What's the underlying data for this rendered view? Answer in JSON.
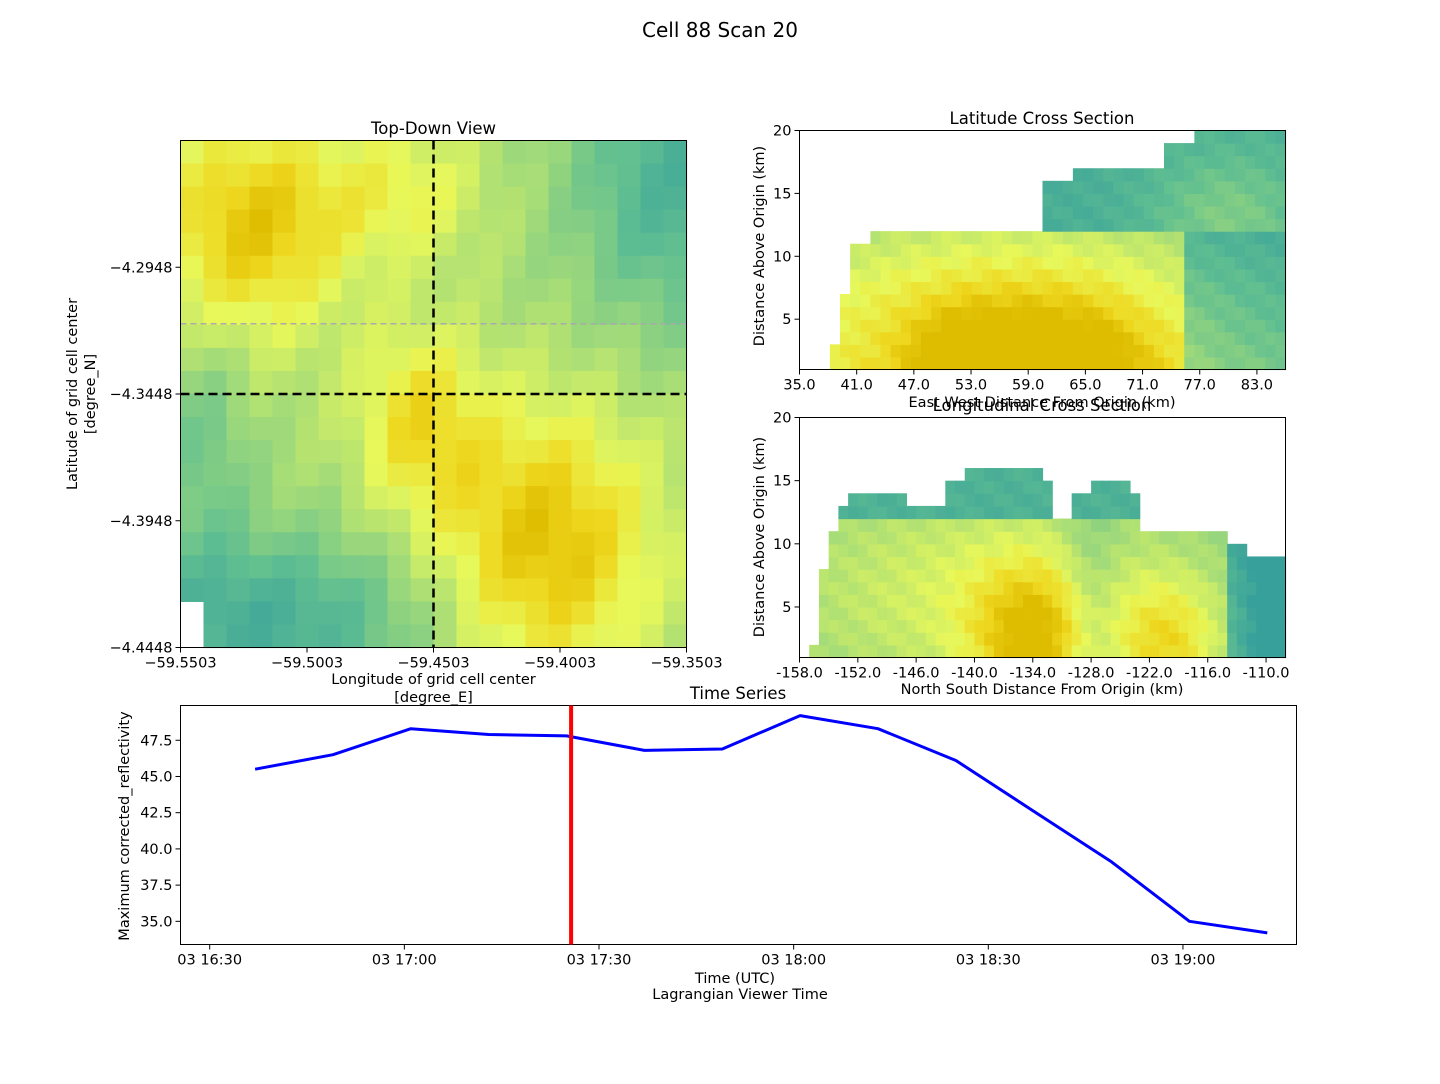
{
  "figure": {
    "title": "Cell 88 Scan 20"
  },
  "chart_data": [
    {
      "id": "topdown",
      "type": "heatmap",
      "title": "Top-Down View",
      "xlabel_line1": "Longitude of grid cell center",
      "xlabel_line2": "[degree_E]",
      "ylabel_line1": "Latitude of grid cell center",
      "ylabel_line2": "[degree_N]",
      "xlim": [
        -59.5503,
        -59.3503
      ],
      "ylim": [
        -4.4448,
        -4.2448
      ],
      "xticks": [
        -59.5503,
        -59.5003,
        -59.4503,
        -59.4003,
        -59.3503
      ],
      "xtick_labels": [
        "−59.5503",
        "−59.5003",
        "−59.4503",
        "−59.4003",
        "−59.3503"
      ],
      "yticks": [
        -4.2948,
        -4.3448,
        -4.3948,
        -4.4448
      ],
      "ytick_labels": [
        "−4.2948",
        "−4.3448",
        "−4.3948",
        "−4.4448"
      ],
      "crosshair": {
        "lon": -59.4503,
        "lat": -4.3448
      },
      "reference_lat": -4.3171,
      "grid_shape": [
        22,
        22
      ]
    },
    {
      "id": "latcross",
      "type": "heatmap",
      "title": "Latitude Cross Section",
      "xlabel": "East West Distance From Origin (km)",
      "ylabel": "Distance Above Origin (km)",
      "xlim": [
        35.0,
        86.0
      ],
      "ylim": [
        1.0,
        20.0
      ],
      "xticks": [
        35.0,
        41.0,
        47.0,
        53.0,
        59.0,
        65.0,
        71.0,
        77.0,
        83.0
      ],
      "xtick_labels": [
        "35.0",
        "41.0",
        "47.0",
        "53.0",
        "59.0",
        "65.0",
        "71.0",
        "77.0",
        "83.0"
      ],
      "yticks": [
        5,
        10,
        15,
        20
      ],
      "ytick_labels": [
        "5",
        "10",
        "15",
        "20"
      ]
    },
    {
      "id": "loncross",
      "type": "heatmap",
      "title": "Longitudinal Cross Section",
      "xlabel": "North South Distance From Origin (km)",
      "ylabel": "Distance Above Origin (km)",
      "xlim": [
        -158.0,
        -108.0
      ],
      "ylim": [
        1.0,
        20.0
      ],
      "xticks": [
        -158.0,
        -152.0,
        -146.0,
        -140.0,
        -134.0,
        -128.0,
        -122.0,
        -116.0,
        -110.0
      ],
      "xtick_labels": [
        "-158.0",
        "-152.0",
        "-146.0",
        "-140.0",
        "-134.0",
        "-128.0",
        "-122.0",
        "-116.0",
        "-110.0"
      ],
      "yticks": [
        5,
        10,
        15,
        20
      ],
      "ytick_labels": [
        "5",
        "10",
        "15",
        "20"
      ]
    },
    {
      "id": "timeseries",
      "type": "line",
      "title": "Time Series",
      "xlabel_line1": "Time (UTC)",
      "xlabel_line2": "Lagrangian Viewer Time",
      "ylabel": "Maximum corrected_reflectivity",
      "x_minutes": [
        7,
        19,
        31,
        43,
        55,
        67,
        79,
        91,
        103,
        115,
        127,
        139,
        151,
        163
      ],
      "series": [
        {
          "name": "Maximum corrected_reflectivity",
          "values": [
            45.5,
            46.5,
            48.3,
            47.9,
            47.8,
            46.8,
            46.9,
            49.2,
            48.3,
            46.1,
            42.6,
            39.1,
            35.0,
            34.2
          ],
          "color": "#0000ff"
        }
      ],
      "xlim_minutes": [
        -4.5,
        167.5
      ],
      "ylim": [
        33.4,
        49.9
      ],
      "xticks_minutes": [
        0,
        30,
        60,
        90,
        120,
        150
      ],
      "xtick_labels": [
        "03 16:30",
        "03 17:00",
        "03 17:30",
        "03 18:00",
        "03 18:30",
        "03 19:00"
      ],
      "yticks": [
        35.0,
        37.5,
        40.0,
        42.5,
        45.0,
        47.5
      ],
      "ytick_labels": [
        "35.0",
        "37.5",
        "40.0",
        "42.5",
        "45.0",
        "47.5"
      ],
      "marker_minutes": 55.7,
      "marker_color": "#ff0000"
    }
  ]
}
